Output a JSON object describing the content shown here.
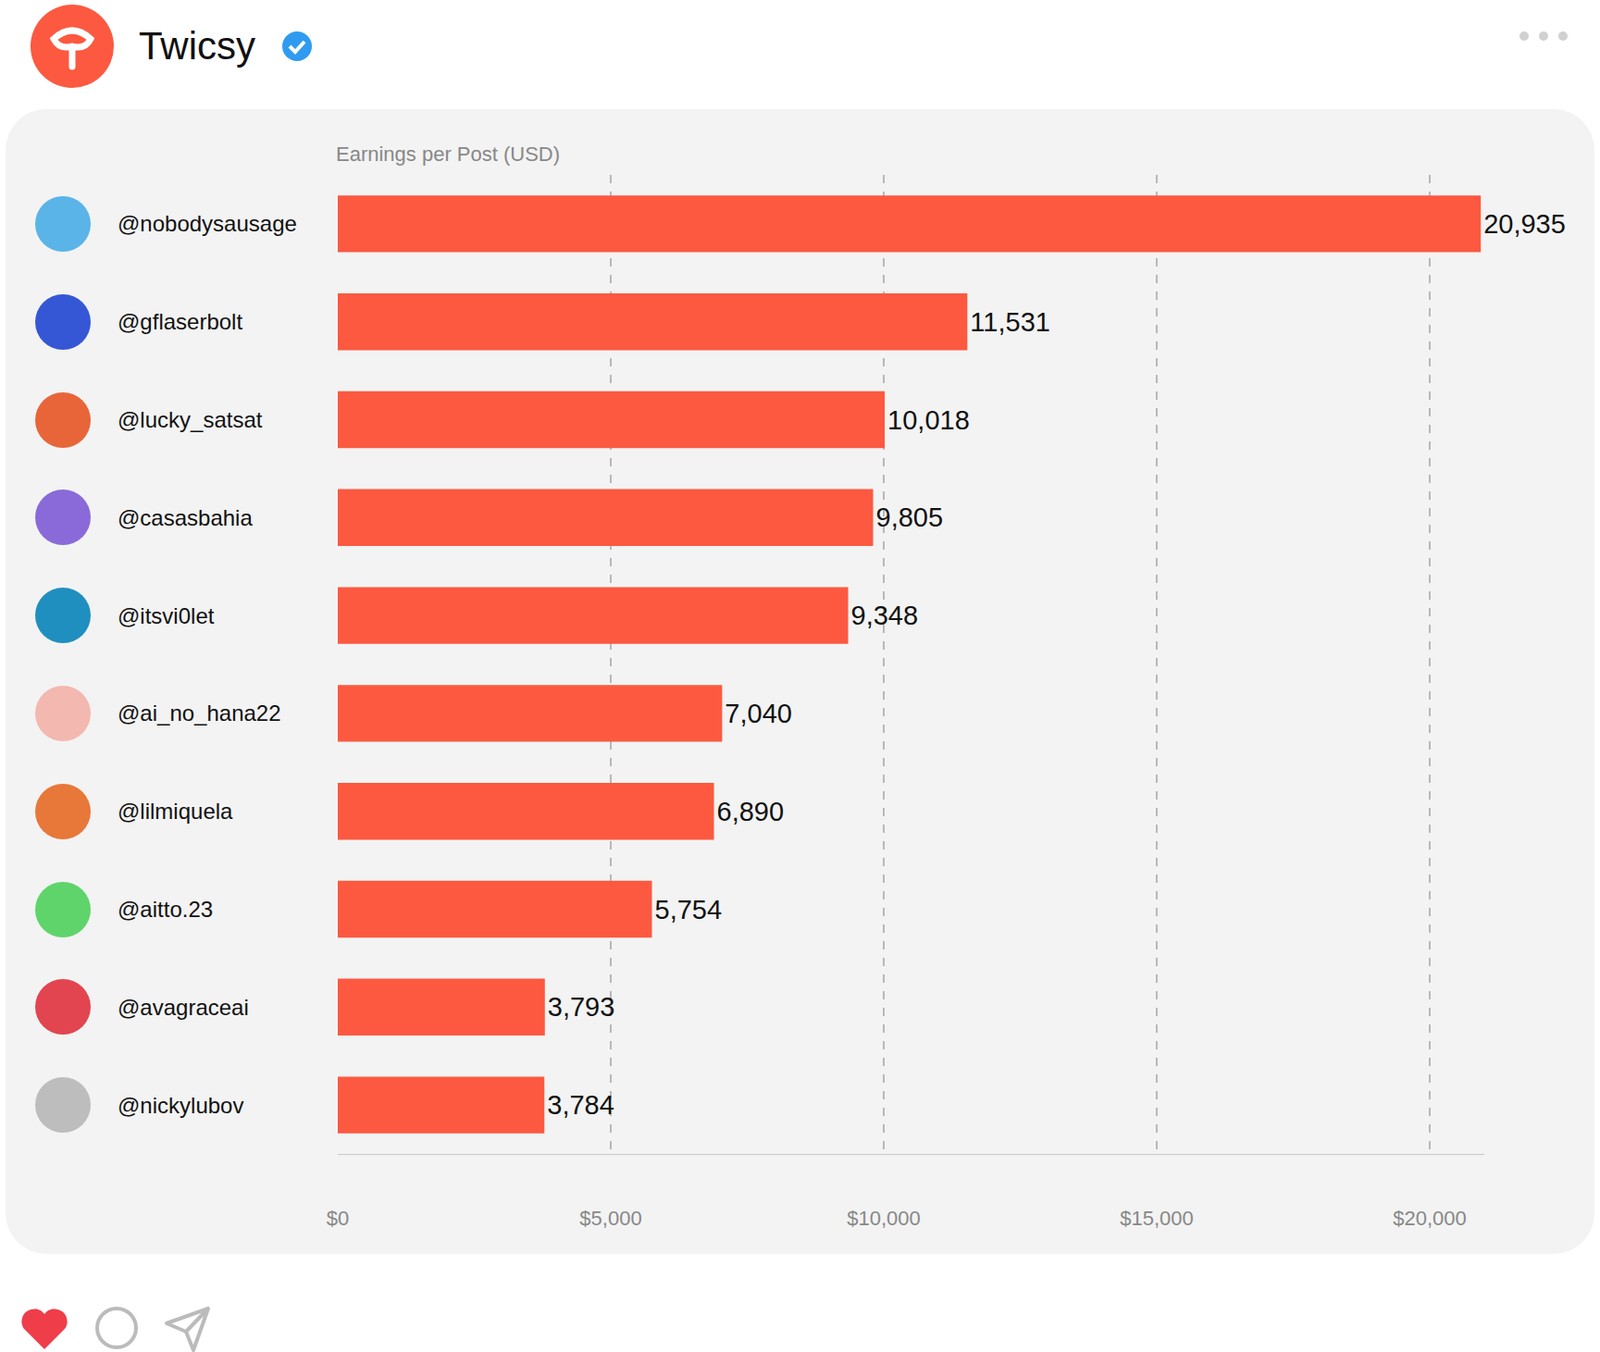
{
  "header": {
    "title": "Twicsy"
  },
  "chart_data": {
    "type": "bar",
    "orientation": "horizontal",
    "xlabel": "Earnings per Post (USD)",
    "categories": [
      "@nobodysausage",
      "@gflaserbolt",
      "@lucky_satsat",
      "@casasbahia",
      "@itsvi0let",
      "@ai_no_hana22",
      "@lilmiquela",
      "@aitto.23",
      "@avagraceai",
      "@nickylubov"
    ],
    "values": [
      20935,
      11531,
      10018,
      9805,
      9348,
      7040,
      6890,
      5754,
      3793,
      3784
    ],
    "value_labels": [
      "20,935",
      "11,531",
      "10,018",
      "9,805",
      "9,348",
      "7,040",
      "6,890",
      "5,754",
      "3,793",
      "3,784"
    ],
    "color": "#fc5940",
    "xlim": [
      0,
      21000
    ],
    "xticks": [
      {
        "value": 0,
        "label": "$0"
      },
      {
        "value": 5000,
        "label": "$5,000"
      },
      {
        "value": 10000,
        "label": "$10,000"
      },
      {
        "value": 15000,
        "label": "$15,000"
      },
      {
        "value": 20000,
        "label": "$20,000"
      }
    ],
    "grid": true,
    "data_labels": true
  }
}
